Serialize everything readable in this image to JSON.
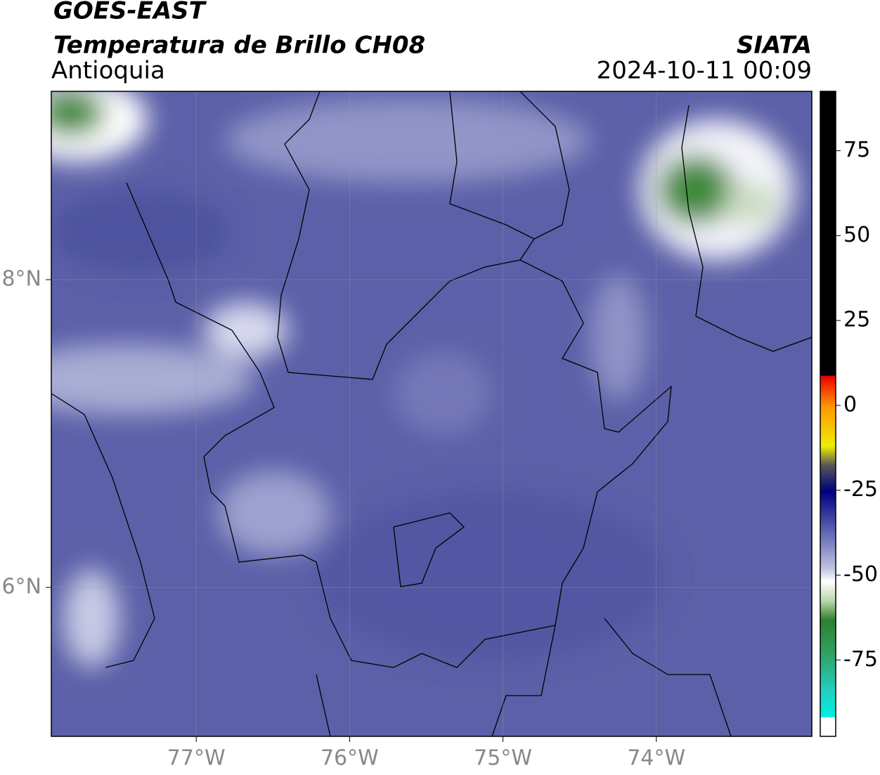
{
  "header": {
    "title": "GOES-EAST",
    "subtitle": "Temperatura de Brillo CH08",
    "region": "Antioquia",
    "brand": "SIATA",
    "datetime": "2024-10-11 00:09"
  },
  "map": {
    "xlim": [
      -77.945,
      -72.986
    ],
    "ylim": [
      5.032,
      9.224
    ],
    "xticks": [
      {
        "value": -77,
        "label": "77°W"
      },
      {
        "value": -76,
        "label": "76°W"
      },
      {
        "value": -75,
        "label": "75°W"
      },
      {
        "value": -74,
        "label": "74°W"
      }
    ],
    "yticks": [
      {
        "value": 8,
        "label": "8°N"
      },
      {
        "value": 6,
        "label": "6°N"
      }
    ]
  },
  "colorbar": {
    "lim": [
      -97.5,
      92.5
    ],
    "ticks": [
      75,
      50,
      25,
      0,
      -25,
      -50,
      -75
    ]
  }
}
